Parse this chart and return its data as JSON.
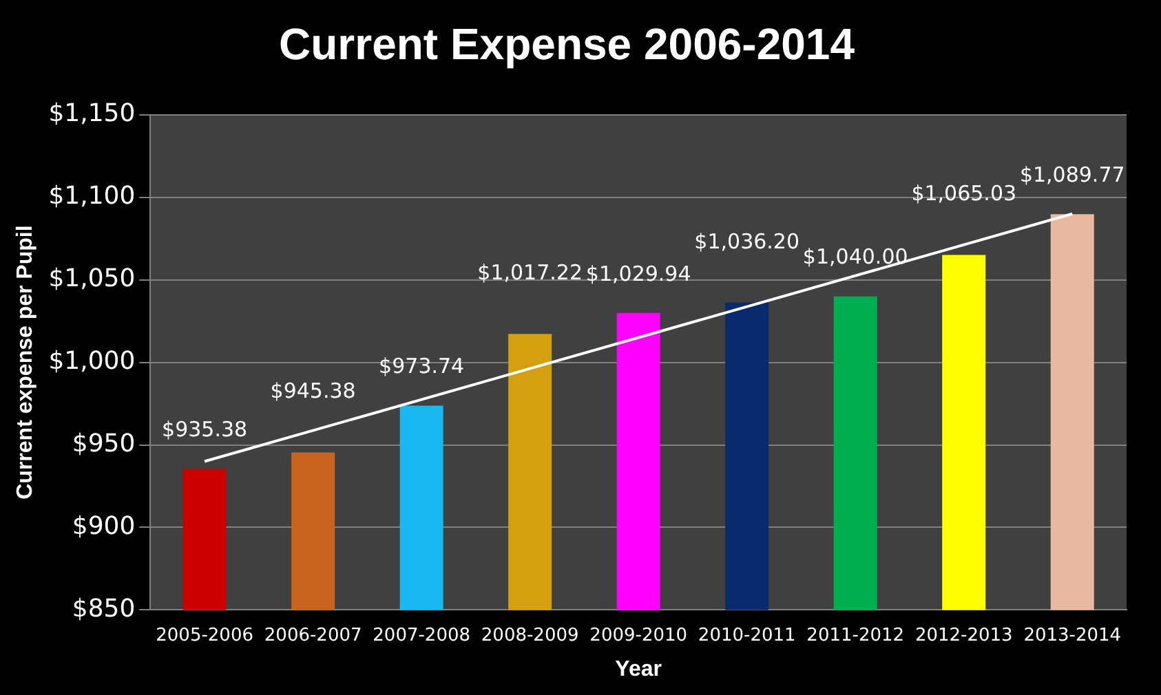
{
  "chart_data": {
    "type": "bar",
    "title": "Current Expense 2006-2014",
    "xlabel": "Year",
    "ylabel": "Current expense per Pupil",
    "categories": [
      "2005-2006",
      "2006-2007",
      "2007-2008",
      "2008-2009",
      "2009-2010",
      "2010-2011",
      "2011-2012",
      "2012-2013",
      "2013-2014"
    ],
    "series": [
      {
        "values": [
          935.38,
          945.38,
          973.74,
          1017.22,
          1029.94,
          1036.2,
          1040.0,
          1065.03,
          1089.77
        ],
        "colors": [
          "#cc0000",
          "#c8641e",
          "#19b8f0",
          "#d4a010",
          "#ff00ff",
          "#0a2a6e",
          "#00b050",
          "#ffff00",
          "#e8b8a0"
        ],
        "value_labels": [
          "$935.38",
          "$945.38",
          "$973.74",
          "$1,017.22",
          "$1,029.94",
          "$1,036.20",
          "$1,040.00",
          "$1,065.03",
          "$1,089.77"
        ]
      },
      {
        "type": "line",
        "color": "#ffffff",
        "x": [
          "2005-2006",
          "2013-2014"
        ],
        "values": [
          940,
          1090
        ]
      }
    ],
    "ylim": [
      850,
      1150
    ],
    "yticks": [
      {
        "value": 850,
        "label": "$850"
      },
      {
        "value": 900,
        "label": "$900"
      },
      {
        "value": 950,
        "label": "$950"
      },
      {
        "value": 1000,
        "label": "$1,000"
      },
      {
        "value": 1050,
        "label": "$1,050"
      },
      {
        "value": 1100,
        "label": "$1,100"
      },
      {
        "value": 1150,
        "label": "$1,150"
      }
    ],
    "grid": "y",
    "legend": false
  }
}
